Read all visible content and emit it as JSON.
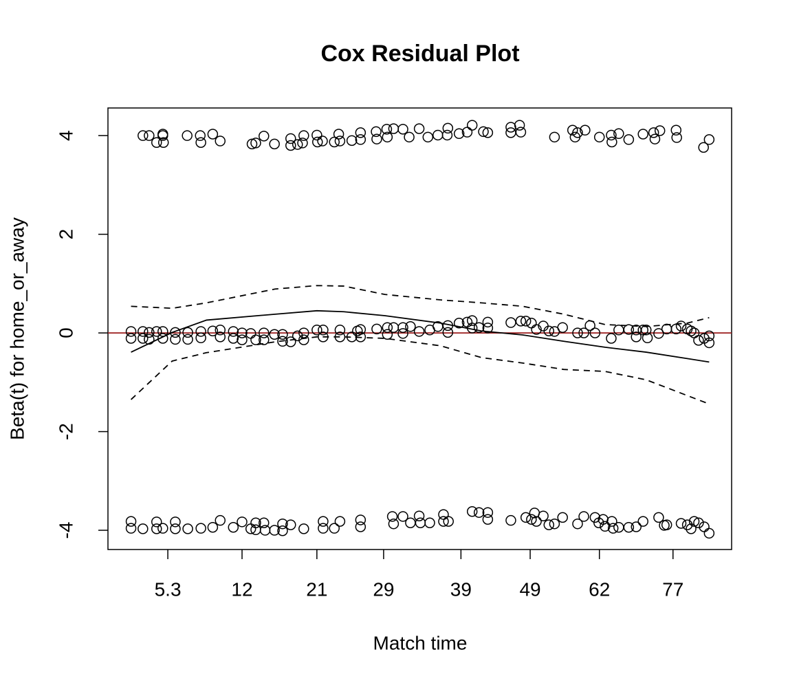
{
  "chart_data": {
    "type": "scatter",
    "title": "Cox Residual Plot",
    "xlabel": "Match time",
    "ylabel": "Beta(t) for home_or_away",
    "xlim": [
      0,
      100
    ],
    "xticks": [
      {
        "value": 9.6,
        "label": "5.3"
      },
      {
        "value": 21.5,
        "label": "12"
      },
      {
        "value": 33.5,
        "label": "21"
      },
      {
        "value": 44.2,
        "label": "29"
      },
      {
        "value": 56.6,
        "label": "39"
      },
      {
        "value": 67.7,
        "label": "49"
      },
      {
        "value": 78.8,
        "label": "62"
      },
      {
        "value": 90.6,
        "label": "77"
      }
    ],
    "ylim": [
      -4.39,
      4.56
    ],
    "yticks": [
      -4,
      -2,
      0,
      2,
      4
    ],
    "hline": {
      "value": 0,
      "color": "#9b1c1c"
    },
    "series": [
      {
        "mode": "points",
        "color": "#000000",
        "x": [
          5.6,
          6.6,
          7.8,
          8.8,
          8.9,
          8.8,
          12.7,
          14.8,
          14.9,
          16.8,
          18.0,
          23.1,
          23.7,
          25.0,
          26.7,
          29.3,
          29.3,
          30.4,
          31.2,
          31.4,
          33.5,
          33.6,
          34.4,
          36.3,
          37.0,
          37.2,
          39.1,
          40.5,
          40.5,
          43.0,
          43.1,
          44.7,
          44.8,
          45.8,
          47.3,
          48.3,
          49.9,
          51.3,
          52.9,
          54.5,
          54.4,
          56.3,
          57.6,
          58.4,
          60.2,
          60.9,
          64.6,
          64.6,
          66.0,
          66.2,
          71.6,
          74.5,
          74.9,
          75.3,
          76.5,
          78.8,
          80.7,
          80.8,
          81.9,
          83.5,
          85.8,
          87.5,
          87.7,
          88.5,
          91.1,
          91.2,
          95.5,
          96.4
        ],
        "y": [
          4.0,
          4.0,
          3.86,
          4.0,
          3.86,
          4.03,
          4.0,
          4.0,
          3.86,
          4.03,
          3.89,
          3.83,
          3.85,
          3.99,
          3.83,
          3.94,
          3.8,
          3.82,
          3.85,
          4.0,
          4.01,
          3.87,
          3.89,
          3.87,
          4.03,
          3.89,
          3.9,
          4.06,
          3.92,
          4.08,
          3.93,
          4.13,
          3.97,
          4.14,
          4.13,
          3.97,
          4.14,
          3.97,
          4.01,
          4.15,
          4.01,
          4.04,
          4.07,
          4.21,
          4.08,
          4.06,
          4.17,
          4.06,
          4.21,
          4.07,
          3.97,
          4.11,
          3.97,
          4.06,
          4.11,
          3.97,
          4.01,
          3.87,
          4.04,
          3.92,
          4.03,
          4.06,
          3.93,
          4.1,
          4.11,
          3.96,
          3.76,
          3.92
        ]
      },
      {
        "mode": "points",
        "color": "#000000",
        "x": [
          3.7,
          3.7,
          5.6,
          5.6,
          6.6,
          6.6,
          7.8,
          8.8,
          8.8,
          10.8,
          10.8,
          12.8,
          12.8,
          14.9,
          14.9,
          16.8,
          18.0,
          18.0,
          20.1,
          20.1,
          21.5,
          21.5,
          22.9,
          23.7,
          25.0,
          25.0,
          26.7,
          28.0,
          28.0,
          29.3,
          30.4,
          31.4,
          31.4,
          33.5,
          34.5,
          34.5,
          37.2,
          37.2,
          39.1,
          40.0,
          40.5,
          40.5,
          43.1,
          44.8,
          44.8,
          45.8,
          47.3,
          47.3,
          48.5,
          49.9,
          51.6,
          52.9,
          54.5,
          54.5,
          56.3,
          57.6,
          58.4,
          58.4,
          59.5,
          60.9,
          60.9,
          64.6,
          66.2,
          67.0,
          67.9,
          68.7,
          69.8,
          70.7,
          71.6,
          72.9,
          75.3,
          76.3,
          77.3,
          78.1,
          80.7,
          81.9,
          83.5,
          84.7,
          84.7,
          85.8,
          86.3,
          86.5,
          88.3,
          89.6,
          91.1,
          91.9,
          92.9,
          93.5,
          94.0,
          94.7,
          95.6,
          96.4,
          96.4
        ],
        "y": [
          0.03,
          -0.11,
          0.03,
          -0.11,
          0.01,
          -0.13,
          0.03,
          0.03,
          -0.11,
          0.01,
          -0.13,
          0.01,
          -0.13,
          0.03,
          -0.1,
          0.04,
          0.06,
          -0.08,
          0.03,
          -0.11,
          0,
          -0.14,
          -0.01,
          -0.14,
          0,
          -0.14,
          -0.03,
          -0.03,
          -0.17,
          -0.18,
          -0.06,
          0,
          -0.14,
          0.06,
          0.06,
          -0.08,
          0.06,
          -0.08,
          -0.08,
          0.04,
          0.07,
          -0.08,
          0.08,
          0.11,
          -0.03,
          0.11,
          0.11,
          -0.01,
          0.13,
          0.03,
          0.06,
          0.13,
          0.15,
          0.01,
          0.2,
          0.22,
          0.25,
          0.1,
          0.11,
          0.22,
          0.1,
          0.21,
          0.24,
          0.24,
          0.2,
          0.07,
          0.14,
          0.04,
          0.03,
          0.11,
          0,
          0,
          0.15,
          0,
          -0.11,
          0.06,
          0.07,
          0.06,
          -0.08,
          0.06,
          0.06,
          -0.1,
          -0.01,
          0.08,
          0.08,
          0.14,
          0.08,
          0.04,
          0,
          -0.15,
          -0.11,
          -0.06,
          -0.2
        ]
      },
      {
        "mode": "points",
        "color": "#000000",
        "x": [
          3.7,
          3.7,
          5.6,
          7.8,
          7.8,
          8.8,
          10.8,
          10.8,
          12.8,
          14.9,
          16.8,
          18.0,
          20.1,
          21.5,
          22.9,
          23.7,
          23.7,
          25.0,
          25.2,
          26.7,
          28.0,
          28.0,
          29.3,
          31.4,
          34.5,
          34.5,
          36.3,
          37.2,
          40.5,
          40.5,
          45.6,
          45.8,
          47.3,
          48.5,
          49.9,
          50.1,
          51.6,
          53.8,
          53.8,
          54.6,
          58.4,
          59.5,
          60.9,
          60.9,
          64.6,
          67.0,
          67.9,
          68.4,
          68.7,
          69.8,
          70.7,
          71.6,
          72.9,
          75.3,
          76.3,
          78.1,
          78.7,
          79.4,
          79.7,
          80.8,
          81.0,
          81.9,
          83.5,
          84.7,
          85.8,
          88.3,
          89.2,
          89.6,
          91.9,
          92.9,
          93.5,
          94.0,
          94.7,
          95.6,
          96.4
        ],
        "y": [
          -3.82,
          -3.96,
          -3.97,
          -3.83,
          -3.97,
          -3.96,
          -3.83,
          -3.97,
          -3.97,
          -3.96,
          -3.94,
          -3.8,
          -3.94,
          -3.83,
          -3.97,
          -3.85,
          -3.99,
          -3.85,
          -4.0,
          -4.0,
          -3.87,
          -4.01,
          -3.89,
          -3.97,
          -3.82,
          -3.96,
          -3.96,
          -3.82,
          -3.79,
          -3.93,
          -3.72,
          -3.87,
          -3.72,
          -3.85,
          -3.71,
          -3.85,
          -3.85,
          -3.68,
          -3.82,
          -3.82,
          -3.62,
          -3.64,
          -3.64,
          -3.78,
          -3.8,
          -3.74,
          -3.78,
          -3.65,
          -3.82,
          -3.71,
          -3.89,
          -3.87,
          -3.74,
          -3.87,
          -3.72,
          -3.74,
          -3.85,
          -3.78,
          -3.92,
          -3.82,
          -3.96,
          -3.94,
          -3.94,
          -3.93,
          -3.82,
          -3.74,
          -3.9,
          -3.89,
          -3.86,
          -3.89,
          -3.97,
          -3.82,
          -3.85,
          -3.93,
          -4.06
        ]
      },
      {
        "mode": "line",
        "dash": false,
        "color": "#000000",
        "x": [
          3.7,
          10.3,
          15.8,
          26.8,
          33.5,
          37.8,
          44.4,
          53.3,
          59.9,
          66.5,
          73.1,
          79.7,
          86.3,
          92.9,
          96.4
        ],
        "y": [
          -0.39,
          0.01,
          0.26,
          0.38,
          0.45,
          0.43,
          0.35,
          0.2,
          0.04,
          -0.04,
          -0.17,
          -0.29,
          -0.39,
          -0.52,
          -0.59
        ]
      },
      {
        "mode": "line",
        "dash": true,
        "color": "#000000",
        "x": [
          3.7,
          10.3,
          15.8,
          26.8,
          33.5,
          37.8,
          44.4,
          53.3,
          59.9,
          66.5,
          73.1,
          79.7,
          86.3,
          92.9,
          96.4
        ],
        "y": [
          0.54,
          0.5,
          0.61,
          0.89,
          0.96,
          0.95,
          0.78,
          0.67,
          0.61,
          0.54,
          0.38,
          0.17,
          0.13,
          0.2,
          0.31
        ]
      },
      {
        "mode": "line",
        "dash": true,
        "color": "#000000",
        "x": [
          3.7,
          10.3,
          15.8,
          26.8,
          33.5,
          37.8,
          44.4,
          53.3,
          59.9,
          66.5,
          73.1,
          79.7,
          86.3,
          92.9,
          96.4
        ],
        "y": [
          -1.35,
          -0.57,
          -0.4,
          -0.18,
          -0.08,
          -0.08,
          -0.11,
          -0.26,
          -0.5,
          -0.61,
          -0.74,
          -0.78,
          -0.95,
          -1.27,
          -1.44
        ]
      }
    ]
  }
}
